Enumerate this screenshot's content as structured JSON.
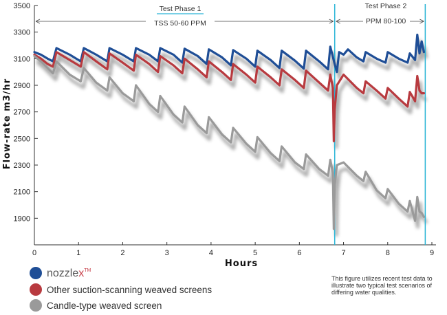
{
  "chart_data": {
    "type": "line",
    "xlabel": "Hours",
    "ylabel": "Flow-rate m3/hr",
    "xlim": [
      0,
      9
    ],
    "ylim": [
      1700,
      3500
    ],
    "xticks": [
      0,
      1,
      2,
      3,
      4,
      5,
      6,
      7,
      8,
      9
    ],
    "yticks": [
      1900,
      2100,
      2300,
      2500,
      2700,
      2900,
      3100,
      3300,
      3500
    ],
    "phases": [
      {
        "title": "Test Phase 1",
        "subtitle": "TSS 50-60 PPM",
        "start": 0,
        "end": 6.8
      },
      {
        "title": "Test Phase 2",
        "subtitle": "PPM 80-100",
        "start": 6.8,
        "end": 8.85
      }
    ],
    "series": [
      {
        "name": "nozzlex",
        "color": "#1f4e96",
        "points": [
          [
            0,
            3150
          ],
          [
            0.15,
            3130
          ],
          [
            0.3,
            3100
          ],
          [
            0.42,
            3080
          ],
          [
            0.5,
            3180
          ],
          [
            0.8,
            3130
          ],
          [
            1.05,
            3080
          ],
          [
            1.12,
            3180
          ],
          [
            1.4,
            3130
          ],
          [
            1.65,
            3080
          ],
          [
            1.7,
            3180
          ],
          [
            2.0,
            3130
          ],
          [
            2.25,
            3080
          ],
          [
            2.3,
            3180
          ],
          [
            2.6,
            3130
          ],
          [
            2.8,
            3080
          ],
          [
            2.85,
            3180
          ],
          [
            3.15,
            3130
          ],
          [
            3.35,
            3070
          ],
          [
            3.4,
            3175
          ],
          [
            3.7,
            3120
          ],
          [
            3.9,
            3060
          ],
          [
            3.95,
            3170
          ],
          [
            4.25,
            3110
          ],
          [
            4.45,
            3050
          ],
          [
            4.5,
            3165
          ],
          [
            4.8,
            3100
          ],
          [
            5.0,
            3040
          ],
          [
            5.05,
            3160
          ],
          [
            5.35,
            3090
          ],
          [
            5.55,
            3030
          ],
          [
            5.6,
            3160
          ],
          [
            5.9,
            3085
          ],
          [
            6.1,
            3025
          ],
          [
            6.15,
            3160
          ],
          [
            6.45,
            3080
          ],
          [
            6.65,
            3020
          ],
          [
            6.7,
            3190
          ],
          [
            6.8,
            3060
          ],
          [
            6.85,
            3000
          ],
          [
            6.9,
            3150
          ],
          [
            7.0,
            3130
          ],
          [
            7.1,
            3170
          ],
          [
            7.3,
            3110
          ],
          [
            7.45,
            3080
          ],
          [
            7.5,
            3150
          ],
          [
            7.75,
            3100
          ],
          [
            7.95,
            3070
          ],
          [
            8.0,
            3150
          ],
          [
            8.25,
            3100
          ],
          [
            8.45,
            3070
          ],
          [
            8.5,
            3140
          ],
          [
            8.62,
            3090
          ],
          [
            8.67,
            3280
          ],
          [
            8.72,
            3140
          ],
          [
            8.77,
            3230
          ],
          [
            8.82,
            3150
          ]
        ]
      },
      {
        "name": "Other suction-scanning weaved screens",
        "color": "#b83a3f",
        "points": [
          [
            0,
            3130
          ],
          [
            0.15,
            3100
          ],
          [
            0.3,
            3060
          ],
          [
            0.42,
            3040
          ],
          [
            0.5,
            3150
          ],
          [
            0.8,
            3090
          ],
          [
            1.05,
            3040
          ],
          [
            1.12,
            3150
          ],
          [
            1.4,
            3080
          ],
          [
            1.65,
            3020
          ],
          [
            1.7,
            3140
          ],
          [
            2.0,
            3070
          ],
          [
            2.25,
            3010
          ],
          [
            2.3,
            3130
          ],
          [
            2.6,
            3060
          ],
          [
            2.8,
            3000
          ],
          [
            2.85,
            3120
          ],
          [
            3.15,
            3050
          ],
          [
            3.35,
            2990
          ],
          [
            3.4,
            3100
          ],
          [
            3.7,
            3020
          ],
          [
            3.9,
            2960
          ],
          [
            3.95,
            3080
          ],
          [
            4.25,
            3000
          ],
          [
            4.45,
            2940
          ],
          [
            4.5,
            3060
          ],
          [
            4.8,
            2980
          ],
          [
            5.0,
            2920
          ],
          [
            5.05,
            3040
          ],
          [
            5.35,
            2960
          ],
          [
            5.55,
            2900
          ],
          [
            5.6,
            3020
          ],
          [
            5.9,
            2940
          ],
          [
            6.1,
            2880
          ],
          [
            6.15,
            3010
          ],
          [
            6.45,
            2920
          ],
          [
            6.65,
            2860
          ],
          [
            6.7,
            2980
          ],
          [
            6.76,
            2880
          ],
          [
            6.78,
            2480
          ],
          [
            6.8,
            2720
          ],
          [
            6.85,
            2900
          ],
          [
            7.0,
            2980
          ],
          [
            7.3,
            2880
          ],
          [
            7.45,
            2840
          ],
          [
            7.5,
            2930
          ],
          [
            7.75,
            2860
          ],
          [
            7.95,
            2800
          ],
          [
            8.0,
            2880
          ],
          [
            8.25,
            2800
          ],
          [
            8.45,
            2740
          ],
          [
            8.5,
            2850
          ],
          [
            8.62,
            2780
          ],
          [
            8.67,
            2970
          ],
          [
            8.72,
            2860
          ],
          [
            8.77,
            2840
          ],
          [
            8.82,
            2840
          ]
        ]
      },
      {
        "name": "Candle-type weaved screen",
        "color": "#9a9a9a",
        "points": [
          [
            0,
            3120
          ],
          [
            0.15,
            3080
          ],
          [
            0.3,
            3030
          ],
          [
            0.42,
            2990
          ],
          [
            0.5,
            3080
          ],
          [
            0.8,
            2980
          ],
          [
            1.05,
            2930
          ],
          [
            1.12,
            3030
          ],
          [
            1.4,
            2920
          ],
          [
            1.65,
            2860
          ],
          [
            1.7,
            2960
          ],
          [
            2.0,
            2840
          ],
          [
            2.25,
            2780
          ],
          [
            2.3,
            2900
          ],
          [
            2.6,
            2760
          ],
          [
            2.8,
            2700
          ],
          [
            2.85,
            2820
          ],
          [
            3.15,
            2680
          ],
          [
            3.35,
            2620
          ],
          [
            3.4,
            2740
          ],
          [
            3.7,
            2600
          ],
          [
            3.9,
            2540
          ],
          [
            3.95,
            2660
          ],
          [
            4.25,
            2530
          ],
          [
            4.45,
            2470
          ],
          [
            4.5,
            2580
          ],
          [
            4.8,
            2460
          ],
          [
            5.0,
            2400
          ],
          [
            5.05,
            2510
          ],
          [
            5.35,
            2390
          ],
          [
            5.55,
            2330
          ],
          [
            5.6,
            2440
          ],
          [
            5.9,
            2320
          ],
          [
            6.1,
            2270
          ],
          [
            6.15,
            2380
          ],
          [
            6.45,
            2270
          ],
          [
            6.65,
            2220
          ],
          [
            6.7,
            2340
          ],
          [
            6.76,
            2240
          ],
          [
            6.78,
            1820
          ],
          [
            6.8,
            2150
          ],
          [
            6.85,
            2300
          ],
          [
            7.0,
            2320
          ],
          [
            7.3,
            2220
          ],
          [
            7.45,
            2180
          ],
          [
            7.5,
            2250
          ],
          [
            7.75,
            2110
          ],
          [
            7.95,
            2050
          ],
          [
            8.0,
            2120
          ],
          [
            8.25,
            2010
          ],
          [
            8.45,
            1950
          ],
          [
            8.5,
            2030
          ],
          [
            8.62,
            1880
          ],
          [
            8.67,
            2060
          ],
          [
            8.72,
            1950
          ],
          [
            8.77,
            1940
          ],
          [
            8.82,
            1910
          ]
        ]
      }
    ],
    "legend": [
      {
        "label_main": "nozzle",
        "label_accent": "x",
        "tm": "TM",
        "color": "#1f4e96"
      },
      {
        "label_main": "Other suction-scanning weaved screens",
        "color": "#b83a3f"
      },
      {
        "label_main": "Candle-type weaved screen",
        "color": "#9a9a9a"
      }
    ],
    "note": [
      "This figure utilizes recent test data to",
      "illustrate two typical test scenarios of",
      "differing water qualities."
    ],
    "phase_line_color": "#29b5d6"
  }
}
